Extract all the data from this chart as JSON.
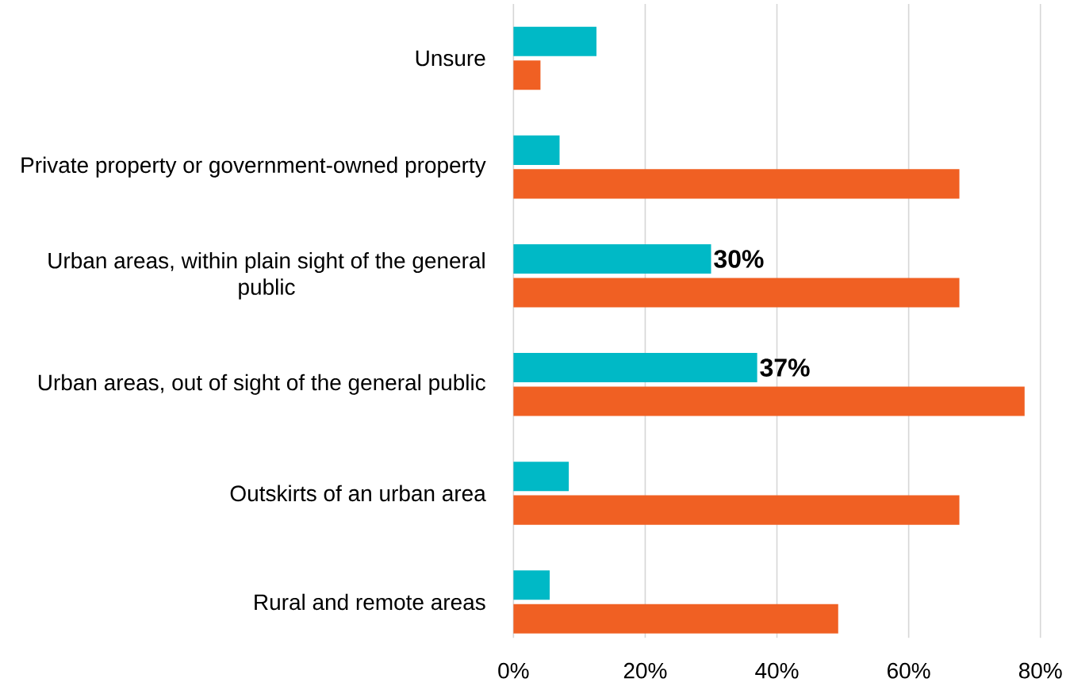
{
  "chart_data": {
    "type": "bar",
    "orientation": "horizontal",
    "categories": [
      "Unsure",
      "Private property or government-owned property",
      "Urban areas, within plain sight of the general public",
      "Urban areas, out of sight of the general public",
      "Outskirts of an urban area",
      "Rural and remote areas"
    ],
    "series": [
      {
        "color": "#00b9c6",
        "values": [
          12.6,
          7.0,
          30,
          37,
          8.4,
          5.5
        ],
        "value_labels": [
          null,
          null,
          "30%",
          "37%",
          null,
          null
        ]
      },
      {
        "color": "#f06023",
        "values": [
          4.1,
          67.7,
          67.7,
          77.6,
          67.7,
          49.3
        ]
      }
    ],
    "xlim": [
      0,
      80
    ],
    "xticks": [
      {
        "value": 0,
        "label": "0%"
      },
      {
        "value": 20,
        "label": "20%"
      },
      {
        "value": 40,
        "label": "40%"
      },
      {
        "value": 60,
        "label": "60%"
      },
      {
        "value": 80,
        "label": "80%"
      }
    ],
    "grid": "x"
  }
}
